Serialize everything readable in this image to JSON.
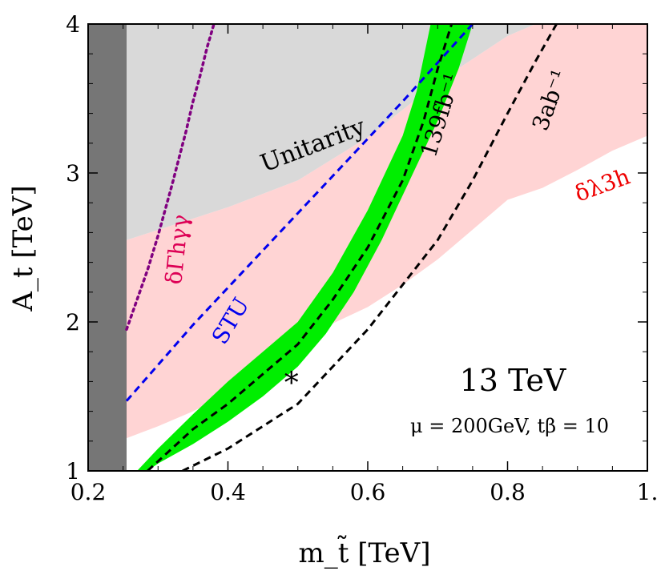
{
  "chart_data": {
    "type": "area",
    "xlabel": "m_t̃ [TeV]",
    "ylabel": "A_t [TeV]",
    "xlim": [
      0.2,
      1.0
    ],
    "ylim": [
      1.0,
      4.0
    ],
    "x_ticks": [
      {
        "value": 0.2,
        "label": "0.2"
      },
      {
        "value": 0.4,
        "label": "0.4"
      },
      {
        "value": 0.6,
        "label": "0.6"
      },
      {
        "value": 0.8,
        "label": "0.8"
      },
      {
        "value": 1.0,
        "label": "1."
      }
    ],
    "y_ticks": [
      {
        "value": 1,
        "label": "1"
      },
      {
        "value": 2,
        "label": "2"
      },
      {
        "value": 3,
        "label": "3"
      },
      {
        "value": 4,
        "label": "4"
      }
    ],
    "grid": false,
    "regions": [
      {
        "name": "excluded",
        "color": "#767676",
        "polygon": [
          [
            0.2,
            1.0
          ],
          [
            0.255,
            1.0
          ],
          [
            0.255,
            4.0
          ],
          [
            0.2,
            4.0
          ]
        ]
      },
      {
        "name": "unitarity",
        "color": "#d9d9d9",
        "polygon": [
          [
            0.255,
            2.55
          ],
          [
            0.4,
            2.77
          ],
          [
            0.5,
            2.95
          ],
          [
            0.6,
            3.24
          ],
          [
            0.7,
            3.61
          ],
          [
            0.8,
            3.92
          ],
          [
            0.84,
            4.0
          ],
          [
            0.255,
            4.0
          ]
        ]
      },
      {
        "name": "δλ3h",
        "color": "#ffd4d4",
        "polygon": [
          [
            0.255,
            1.22
          ],
          [
            0.3,
            1.3
          ],
          [
            0.35,
            1.4
          ],
          [
            0.4,
            1.52
          ],
          [
            0.45,
            1.68
          ],
          [
            0.5,
            1.85
          ],
          [
            0.55,
            1.99
          ],
          [
            0.6,
            2.1
          ],
          [
            0.65,
            2.25
          ],
          [
            0.7,
            2.42
          ],
          [
            0.75,
            2.62
          ],
          [
            0.8,
            2.82
          ],
          [
            0.85,
            2.9
          ],
          [
            0.9,
            3.02
          ],
          [
            0.95,
            3.15
          ],
          [
            1.0,
            3.25
          ],
          [
            1.0,
            4.0
          ],
          [
            0.84,
            4.0
          ],
          [
            0.8,
            3.92
          ],
          [
            0.7,
            3.61
          ],
          [
            0.6,
            3.24
          ],
          [
            0.5,
            2.95
          ],
          [
            0.4,
            2.77
          ],
          [
            0.255,
            2.55
          ]
        ]
      },
      {
        "name": "139 fb⁻¹ band",
        "color": "#00ee00",
        "polygon": [
          [
            0.27,
            1.0
          ],
          [
            0.3,
            1.15
          ],
          [
            0.35,
            1.38
          ],
          [
            0.4,
            1.6
          ],
          [
            0.45,
            1.8
          ],
          [
            0.5,
            2.0
          ],
          [
            0.55,
            2.33
          ],
          [
            0.6,
            2.75
          ],
          [
            0.65,
            3.25
          ],
          [
            0.67,
            3.55
          ],
          [
            0.69,
            4.0
          ],
          [
            0.75,
            4.0
          ],
          [
            0.73,
            3.7
          ],
          [
            0.7,
            3.35
          ],
          [
            0.66,
            2.95
          ],
          [
            0.62,
            2.55
          ],
          [
            0.58,
            2.2
          ],
          [
            0.54,
            1.92
          ],
          [
            0.5,
            1.7
          ],
          [
            0.45,
            1.5
          ],
          [
            0.4,
            1.33
          ],
          [
            0.35,
            1.18
          ],
          [
            0.3,
            1.05
          ],
          [
            0.285,
            1.0
          ]
        ]
      }
    ],
    "series": [
      {
        "name": "δΓhγγ",
        "style": "dotted",
        "color": "#800080",
        "x": [
          0.255,
          0.27,
          0.285,
          0.3,
          0.31,
          0.32,
          0.33,
          0.34,
          0.35,
          0.36,
          0.37,
          0.38
        ],
        "y": [
          1.95,
          2.15,
          2.35,
          2.58,
          2.75,
          2.92,
          3.1,
          3.28,
          3.48,
          3.65,
          3.84,
          4.0
        ]
      },
      {
        "name": "STU",
        "style": "dashed",
        "color": "#0000ee",
        "x": [
          0.255,
          0.35,
          0.45,
          0.55,
          0.65,
          0.75
        ],
        "y": [
          1.47,
          1.98,
          2.48,
          2.98,
          3.48,
          4.0
        ]
      },
      {
        "name": "139fb⁻¹",
        "style": "dashed",
        "color": "#000000",
        "x": [
          0.285,
          0.35,
          0.4,
          0.45,
          0.5,
          0.55,
          0.6,
          0.65,
          0.68,
          0.7,
          0.72
        ],
        "y": [
          1.0,
          1.28,
          1.45,
          1.65,
          1.85,
          2.15,
          2.5,
          2.95,
          3.35,
          3.7,
          4.0
        ]
      },
      {
        "name": "3ab⁻¹",
        "style": "dashed",
        "color": "#000000",
        "x": [
          0.335,
          0.4,
          0.5,
          0.6,
          0.7,
          0.75,
          0.8,
          0.84,
          0.87
        ],
        "y": [
          1.0,
          1.15,
          1.45,
          1.95,
          2.55,
          2.95,
          3.4,
          3.75,
          4.0
        ]
      }
    ],
    "markers": [
      {
        "label": "*",
        "x": 0.5,
        "y": 1.6
      }
    ],
    "annotations": {
      "unitarity": "Unitarity",
      "gamma": "δΓhγγ",
      "stu": "STU",
      "fb139": "139fb⁻¹",
      "ab3": "3ab⁻¹",
      "lambda3h": "δλ3h",
      "energy": "13 TeV",
      "params": "μ = 200GeV, tβ = 10"
    }
  }
}
